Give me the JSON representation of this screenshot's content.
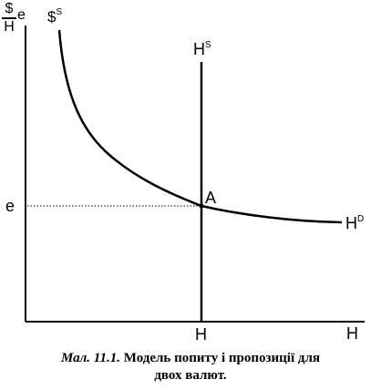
{
  "diagram": {
    "y_axis_label_numerator": "$",
    "y_axis_label_denominator": "H",
    "y_axis_label_suffix": "e",
    "x_axis_label": "H",
    "curve_s_label": "$",
    "curve_s_sup": "S",
    "line_hs_label": "H",
    "line_hs_sup": "S",
    "curve_hd_label": "H",
    "curve_hd_sup": "D",
    "point_label": "A",
    "e_tick_label": "e",
    "h_tick_label": "H"
  },
  "caption": {
    "number": "Мал. 11.1.",
    "text_line1": "Модель попиту і пропозиції для",
    "text_line2": "двох валют."
  }
}
